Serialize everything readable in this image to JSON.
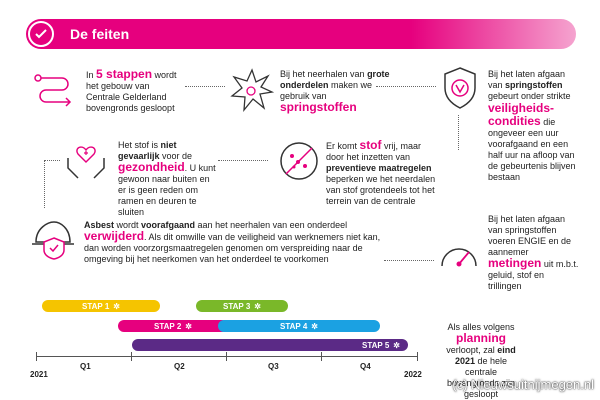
{
  "header": {
    "title": "De feiten"
  },
  "facts": {
    "stappen": {
      "pre": "In ",
      "em": "5 stappen",
      "post": " wordt het gebouw van Centrale Gelderland bovengronds gesloopt"
    },
    "springstoffen": {
      "pre": "Bij het neerhalen van ",
      "bold": "grote onderdelen",
      "mid": " maken we gebruik van ",
      "em": "springstoffen"
    },
    "veiligheid": {
      "pre": "Bij het laten afgaan van ",
      "bold": "springstoffen",
      "mid": " gebeurt onder strikte ",
      "em": "veiligheids-condities",
      "post": " die ongeveer een uur voorafgaand en een half uur na afloop van de gebeurtenis blijven bestaan"
    },
    "gezondheid": {
      "pre": "Het stof is ",
      "bold": "niet gevaarlijk",
      "mid": " voor de ",
      "em": "gezondheid",
      "post": ". U kunt gewoon naar buiten en er is geen reden om ramen en deuren te sluiten"
    },
    "stof": {
      "pre": "Er komt ",
      "em": "stof",
      "mid": " vrij, maar door het inzetten van ",
      "bold": "preventieve maatregelen",
      "post": " beperken we het neerdalen van stof grotendeels tot het terrein van de centrale"
    },
    "asbest": {
      "b1": "Asbest",
      "t1": " wordt ",
      "b2": "voorafgaand",
      "t2": " aan het neerhalen van een onderdeel ",
      "em": "verwijderd",
      "post": ". Als dit omwille van de veiligheid van werknemers niet kan, dan worden voorzorgsmaatregelen genomen om verspreiding naar de omgeving bij het neerkomen van het onderdeel te voorkomen"
    },
    "metingen": {
      "pre": "Bij het laten afgaan van springstoffen voeren ENGIE en de aannemer ",
      "em": "metingen",
      "post": " uit m.b.t. geluid, stof en trillingen"
    },
    "planning": {
      "pre": "Als alles volgens ",
      "em": "planning",
      "mid": " verloopt, zal ",
      "bold": "eind 2021",
      "post": " de hele centrale bovengronds zijn gesloopt"
    }
  },
  "timeline": {
    "bars": [
      {
        "label": "STAP 1",
        "color": "#f5c400"
      },
      {
        "label": "STAP 2",
        "color": "#e6007e"
      },
      {
        "label": "STAP 3",
        "color": "#7ab829"
      },
      {
        "label": "STAP 4",
        "color": "#1ba1e2"
      },
      {
        "label": "STAP 5",
        "color": "#5b2a86"
      }
    ],
    "axis": {
      "start": "2021",
      "q1": "Q1",
      "q2": "Q2",
      "q3": "Q3",
      "q4": "Q4",
      "end": "2022"
    }
  },
  "watermark": "(c) Nieuwsuitnijmegen.nl"
}
